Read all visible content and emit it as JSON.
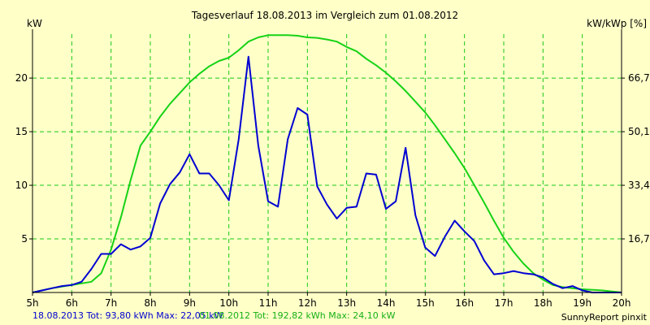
{
  "chart_data": {
    "type": "line",
    "title": "Tagesverlauf 18.08.2013 im Vergleich zum 01.08.2012",
    "ylabel_left": "kW",
    "ylabel_right": "kW/kWp [%]",
    "x_ticks": [
      "5h",
      "6h",
      "7h",
      "8h",
      "9h",
      "10h",
      "11h",
      "12h",
      "13h",
      "14h",
      "15h",
      "16h",
      "17h",
      "18h",
      "19h",
      "20h"
    ],
    "x_range": [
      5,
      20
    ],
    "y_left_ticks": [
      5,
      10,
      15,
      20
    ],
    "y_left_range": [
      0,
      24.1
    ],
    "y_right_ticks": [
      "16,7",
      "33,4",
      "50,1",
      "66,7"
    ],
    "grid": true,
    "series": [
      {
        "name": "18.08.2013",
        "color": "#0000d2",
        "x": [
          5.0,
          5.25,
          5.5,
          5.75,
          6.0,
          6.25,
          6.5,
          6.75,
          7.0,
          7.25,
          7.5,
          7.75,
          8.0,
          8.25,
          8.5,
          8.75,
          9.0,
          9.25,
          9.5,
          9.75,
          10.0,
          10.25,
          10.5,
          10.75,
          11.0,
          11.25,
          11.5,
          11.75,
          12.0,
          12.25,
          12.5,
          12.75,
          13.0,
          13.25,
          13.5,
          13.75,
          14.0,
          14.25,
          14.5,
          14.75,
          15.0,
          15.25,
          15.5,
          15.75,
          16.0,
          16.25,
          16.5,
          16.75,
          17.0,
          17.25,
          17.5,
          17.75,
          18.0,
          18.25,
          18.5,
          18.75,
          19.0,
          19.25,
          19.5,
          19.75,
          20.0
        ],
        "y": [
          0,
          0.2,
          0.4,
          0.6,
          0.7,
          1.0,
          2.2,
          3.6,
          3.6,
          4.5,
          4.0,
          4.3,
          5.1,
          8.3,
          10.1,
          11.2,
          12.9,
          11.1,
          11.1,
          10.0,
          8.6,
          14.3,
          22.0,
          13.7,
          8.5,
          8.0,
          14.3,
          17.2,
          16.6,
          9.9,
          8.2,
          6.9,
          7.9,
          8.0,
          11.1,
          11.0,
          7.8,
          8.5,
          13.5,
          7.2,
          4.2,
          3.4,
          5.2,
          6.7,
          5.7,
          4.8,
          3.0,
          1.7,
          1.8,
          2.0,
          1.8,
          1.7,
          1.4,
          0.8,
          0.4,
          0.6,
          0.2,
          0,
          0,
          0,
          0
        ]
      },
      {
        "name": "01.08.2012",
        "color": "#16d216",
        "x": [
          5.0,
          5.5,
          6.0,
          6.5,
          6.75,
          7.0,
          7.25,
          7.5,
          7.75,
          8.0,
          8.25,
          8.5,
          8.75,
          9.0,
          9.25,
          9.5,
          9.75,
          10.0,
          10.25,
          10.5,
          10.75,
          11.0,
          11.25,
          11.5,
          11.75,
          12.0,
          12.25,
          12.5,
          12.75,
          13.0,
          13.25,
          13.5,
          13.75,
          14.0,
          14.25,
          14.5,
          14.75,
          15.0,
          15.25,
          15.5,
          15.75,
          16.0,
          16.25,
          16.5,
          16.75,
          17.0,
          17.25,
          17.5,
          17.75,
          18.0,
          18.25,
          18.5,
          18.75,
          19.0,
          19.5,
          20.0
        ],
        "y": [
          0,
          0.4,
          0.7,
          1.0,
          1.8,
          4.0,
          7.0,
          10.5,
          13.7,
          15.0,
          16.4,
          17.6,
          18.6,
          19.6,
          20.4,
          21.1,
          21.6,
          21.9,
          22.6,
          23.4,
          23.8,
          24.0,
          24.0,
          24.0,
          23.95,
          23.8,
          23.75,
          23.6,
          23.4,
          22.9,
          22.5,
          21.8,
          21.2,
          20.5,
          19.7,
          18.8,
          17.8,
          16.8,
          15.6,
          14.3,
          13.0,
          11.6,
          10.0,
          8.4,
          6.7,
          5.1,
          3.8,
          2.7,
          1.8,
          1.2,
          0.7,
          0.5,
          0.4,
          0.3,
          0.2,
          0
        ]
      }
    ],
    "footer": {
      "series1": "18.08.2013 Tot: 93,80 kWh Max: 22,05 kW",
      "series2": "01.08.2012 Tot: 192,82 kWh Max: 24,10 kW",
      "credit": "SunnyReport pinxit"
    }
  }
}
